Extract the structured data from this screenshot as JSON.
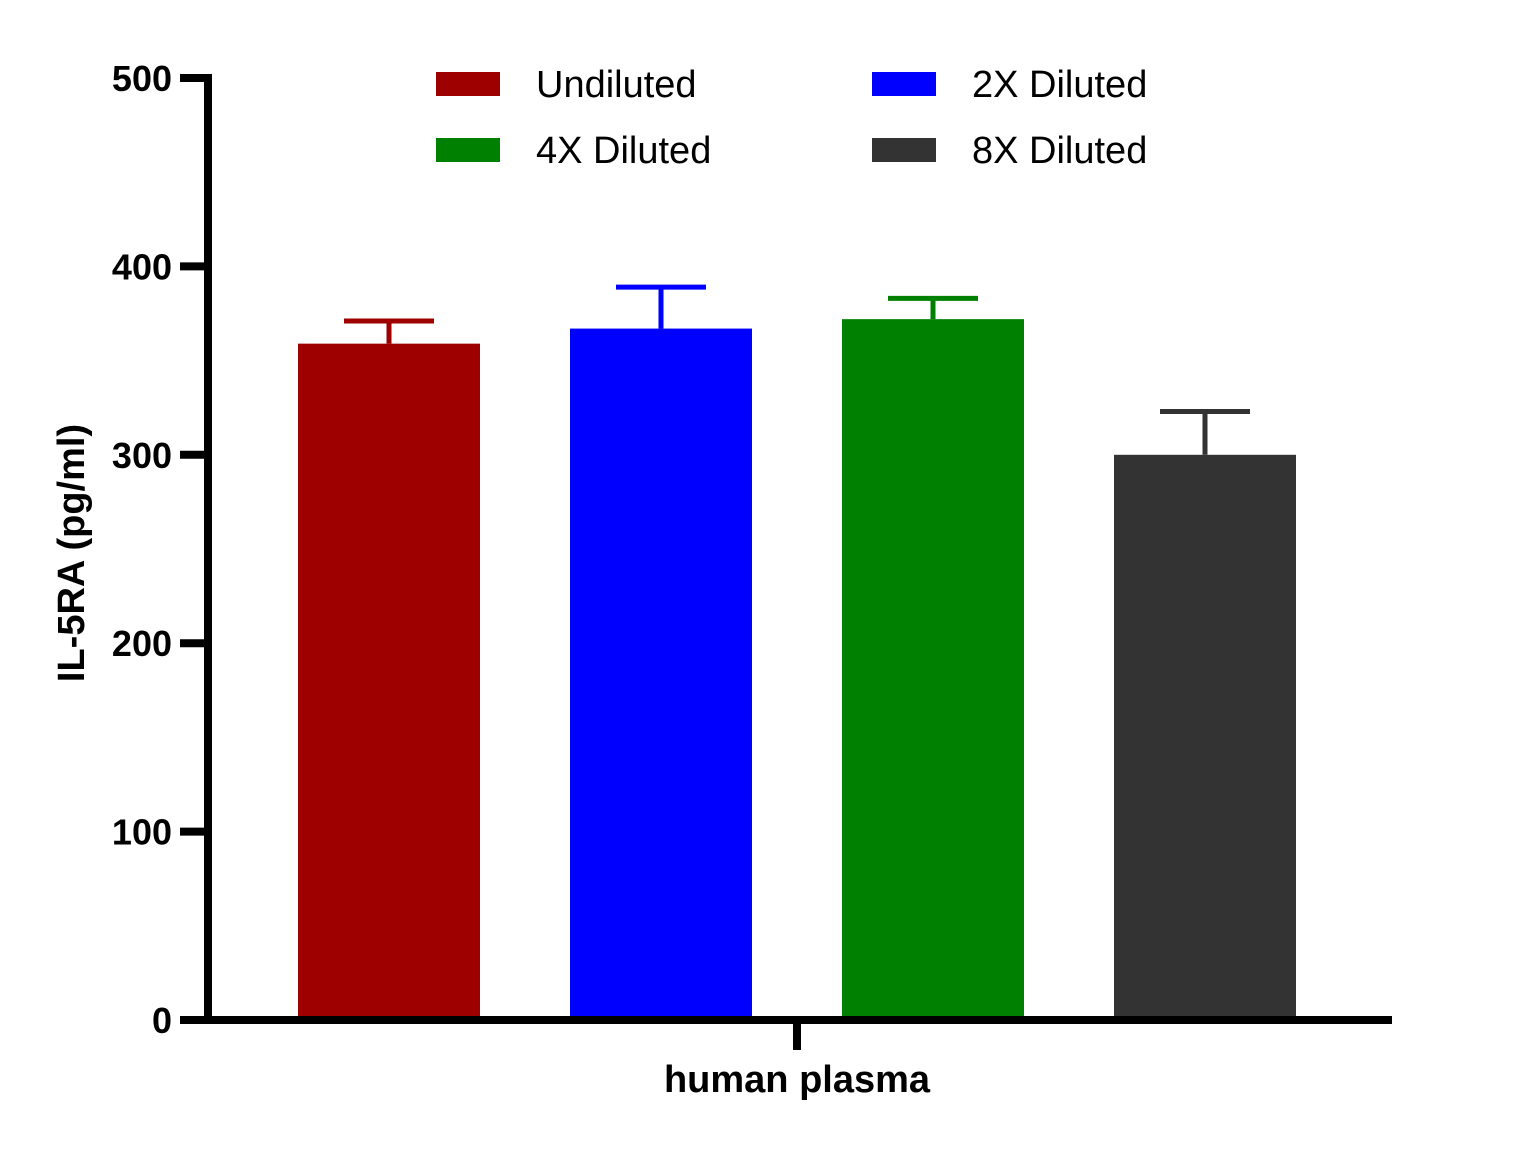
{
  "chart_data": {
    "type": "bar",
    "title": "",
    "xlabel": "human plasma",
    "ylabel": "IL-5RA (pg/ml)",
    "ylim": [
      0,
      500
    ],
    "yticks": [
      "0",
      "100",
      "200",
      "300",
      "400",
      "500"
    ],
    "categories": [
      "human plasma"
    ],
    "grid": false,
    "legend_position": "top",
    "series": [
      {
        "name": "Undiluted",
        "color": "#9e0000",
        "value": 359,
        "error": 12
      },
      {
        "name": "2X Diluted",
        "color": "#0000ff",
        "value": 367,
        "error": 22
      },
      {
        "name": "4X Diluted",
        "color": "#008000",
        "value": 372,
        "error": 11
      },
      {
        "name": "8X Diluted",
        "color": "#333333",
        "value": 300,
        "error": 23
      }
    ]
  }
}
